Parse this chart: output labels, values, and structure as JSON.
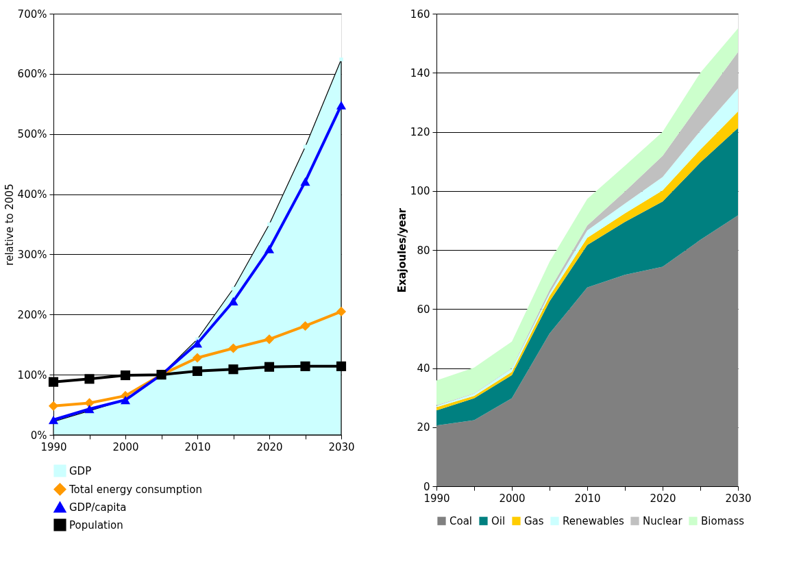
{
  "chart_data": [
    {
      "type": "line",
      "ylabel": "relative to 2005",
      "x": [
        1990,
        1995,
        2000,
        2005,
        2010,
        2015,
        2020,
        2025,
        2030
      ],
      "xlim": [
        1990,
        2030
      ],
      "xticks": [
        1990,
        {
          "value": 1995,
          "label": null
        },
        2000,
        {
          "value": 2005,
          "label": null
        },
        2010,
        {
          "value": 2015,
          "label": null
        },
        2020,
        {
          "value": 2025,
          "label": null
        },
        2030
      ],
      "ylim": [
        0,
        700
      ],
      "yticks": [
        {
          "value": 0,
          "label": "0%"
        },
        {
          "value": 100,
          "label": "100%"
        },
        {
          "value": 200,
          "label": "200%"
        },
        {
          "value": 300,
          "label": "300%"
        },
        {
          "value": 400,
          "label": "400%"
        },
        {
          "value": 500,
          "label": "500%"
        },
        {
          "value": 600,
          "label": "600%"
        },
        {
          "value": 700,
          "label": "700%"
        }
      ],
      "grid": "y",
      "legend": "bottom",
      "series": [
        {
          "name": "GDP",
          "type": "area",
          "color": "#ccffff",
          "values": [
            22,
            40,
            58,
            100,
            159,
            243,
            350,
            479,
            624
          ]
        },
        {
          "name": "Total energy consumption",
          "type": "line",
          "marker": "diamond",
          "color": "#ff9900",
          "values": [
            48,
            53,
            65,
            100,
            128,
            144,
            159,
            181,
            205
          ]
        },
        {
          "name": "GDP/capita",
          "type": "line",
          "marker": "triangle",
          "color": "#0000ff",
          "values": [
            25,
            43,
            58,
            100,
            152,
            222,
            309,
            421,
            548
          ]
        },
        {
          "name": "Population",
          "type": "line",
          "marker": "square",
          "color": "#000000",
          "values": [
            88,
            93,
            99,
            100,
            106,
            109,
            113,
            114,
            114
          ]
        }
      ]
    },
    {
      "type": "area",
      "stacked": true,
      "ylabel": "Exajoules/year",
      "x": [
        1990,
        1995,
        2000,
        2005,
        2010,
        2015,
        2020,
        2025,
        2030
      ],
      "xlim": [
        1990,
        2030
      ],
      "xticks": [
        1990,
        {
          "value": 1995,
          "label": null
        },
        2000,
        {
          "value": 2005,
          "label": null
        },
        2010,
        {
          "value": 2015,
          "label": null
        },
        2020,
        {
          "value": 2025,
          "label": null
        },
        2030
      ],
      "ylim": [
        0,
        160
      ],
      "yticks": [
        0,
        20,
        40,
        60,
        80,
        100,
        120,
        140,
        160
      ],
      "grid": "y",
      "legend": "bottom",
      "series": [
        {
          "name": "Coal",
          "color": "#808080",
          "values": [
            20.6,
            22.4,
            29.8,
            51.7,
            67.3,
            71.6,
            74.3,
            83.4,
            91.7
          ]
        },
        {
          "name": "Oil",
          "color": "#008080",
          "values": [
            5.1,
            7.4,
            7.8,
            10.9,
            14.4,
            17.9,
            22.1,
            26.2,
            29.6
          ]
        },
        {
          "name": "Gas",
          "color": "#ffcc00",
          "values": [
            1.1,
            0.8,
            1.1,
            1.8,
            2.4,
            2.9,
            3.8,
            4.4,
            5.6
          ]
        },
        {
          "name": "Renewables",
          "color": "#ccffff",
          "values": [
            0.4,
            0.7,
            1.1,
            0.9,
            2.5,
            3.3,
            4.5,
            6.3,
            7.8
          ]
        },
        {
          "name": "Nuclear",
          "color": "#c0c0c0",
          "values": [
            0.2,
            0.2,
            0.2,
            1.2,
            1.7,
            4.1,
            7.2,
            9.4,
            12.3
          ]
        },
        {
          "name": "Biomass",
          "color": "#ccffcc",
          "values": [
            8.4,
            8.7,
            9.0,
            9.5,
            9.0,
            8.7,
            8.1,
            10.3,
            8.0
          ]
        }
      ]
    }
  ]
}
